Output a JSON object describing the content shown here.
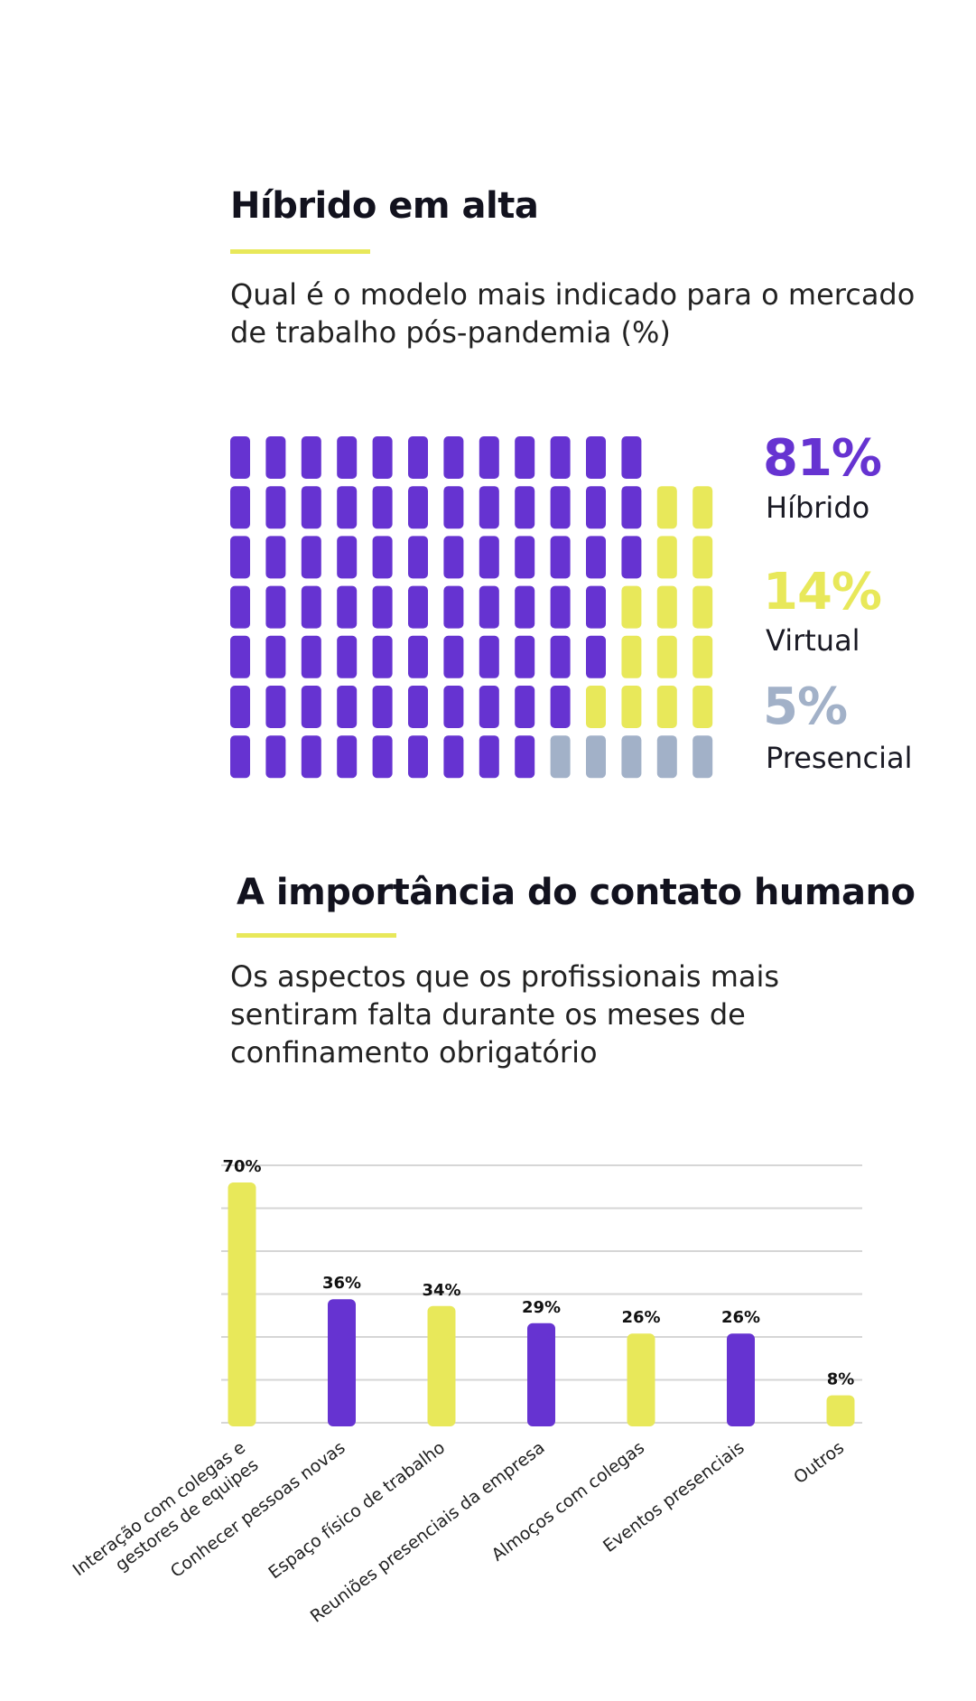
{
  "section1": {
    "title": "Híbrido em alta",
    "subtitle": "Qual é o modelo mais indicado para o mercado de trabalho pós-pandemia (%)"
  },
  "section2": {
    "title": "A importância do contato humano",
    "subtitle": "Os aspectos que os profissionais mais sentiram falta durante os meses de confinamento obrigatório"
  },
  "colors": {
    "purple": "#6633d1",
    "yellow": "#e8e85a",
    "gray": "#a2b1c8",
    "grid": "#d6d6d6"
  },
  "chart_data": [
    {
      "type": "waffle",
      "total": 100,
      "series": [
        {
          "name": "Híbrido",
          "value": 81,
          "label": "81%",
          "color": "#6633d1"
        },
        {
          "name": "Virtual",
          "value": 14,
          "label": "14%",
          "color": "#e8e85a"
        },
        {
          "name": "Presencial",
          "value": 5,
          "label": "5%",
          "color": "#a2b1c8"
        }
      ]
    },
    {
      "type": "bar",
      "categories": [
        "Interação com colegas e gestores de equipes",
        "Conhecer pessoas novas",
        "Espaço físico de trabalho",
        "Reuniões presenciais da empresa",
        "Almoços com colegas",
        "Eventos presenciais",
        "Outros"
      ],
      "category_lines": [
        [
          "Interação com colegas e",
          "gestores de equipes"
        ],
        [
          "Conhecer pessoas novas"
        ],
        [
          "Espaço físico de trabalho"
        ],
        [
          "Reuniões presenciais da empresa"
        ],
        [
          "Almoços com colegas"
        ],
        [
          "Eventos presenciais"
        ],
        [
          "Outros"
        ]
      ],
      "values": [
        70,
        36,
        34,
        29,
        26,
        26,
        8
      ],
      "value_labels": [
        "70%",
        "36%",
        "34%",
        "29%",
        "26%",
        "26%",
        "8%"
      ],
      "bar_colors": [
        "#e8e85a",
        "#6633d1",
        "#e8e85a",
        "#6633d1",
        "#e8e85a",
        "#6633d1",
        "#e8e85a"
      ],
      "grid": true
    }
  ]
}
